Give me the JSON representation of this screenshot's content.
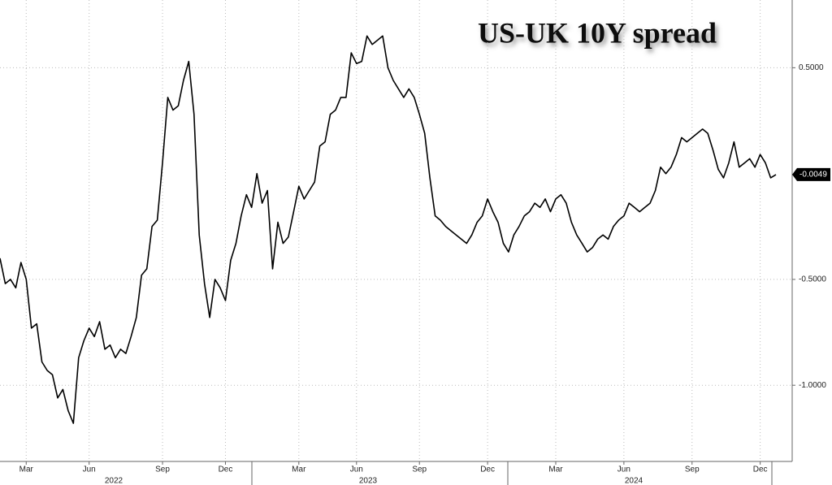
{
  "chart_data": {
    "type": "line",
    "title": "US-UK 10Y spread",
    "categories": [
      null,
      null,
      null,
      null,
      null,
      "Mar",
      null,
      null,
      null,
      null,
      null,
      null,
      null,
      null,
      null,
      null,
      null,
      "Jun",
      null,
      null,
      null,
      null,
      null,
      null,
      null,
      null,
      null,
      null,
      null,
      null,
      null,
      "Sep",
      null,
      null,
      null,
      null,
      null,
      null,
      null,
      null,
      null,
      null,
      null,
      "Dec",
      null,
      null,
      null,
      null,
      null,
      null,
      null,
      null,
      null,
      null,
      null,
      null,
      null,
      "Mar",
      null,
      null,
      null,
      null,
      null,
      null,
      null,
      null,
      null,
      null,
      "Jun",
      null,
      null,
      null,
      null,
      null,
      null,
      null,
      null,
      null,
      null,
      null,
      "Sep",
      null,
      null,
      null,
      null,
      null,
      null,
      null,
      null,
      null,
      null,
      null,
      null,
      "Dec",
      null,
      null,
      null,
      null,
      null,
      null,
      null,
      null,
      null,
      null,
      null,
      null,
      "Mar",
      null,
      null,
      null,
      null,
      null,
      null,
      null,
      null,
      null,
      null,
      null,
      null,
      "Jun",
      null,
      null,
      null,
      null,
      null,
      null,
      null,
      null,
      null,
      null,
      null,
      null,
      "Sep",
      null,
      null,
      null,
      null,
      null,
      null,
      null,
      null,
      null,
      null,
      null,
      null,
      "Dec",
      null,
      null,
      null
    ],
    "x_groups": [
      "2022",
      "2023",
      "2024"
    ],
    "series": [
      {
        "color": "#000000",
        "values": [
          -0.4,
          -0.52,
          -0.5,
          -0.54,
          -0.42,
          -0.5,
          -0.73,
          -0.71,
          -0.89,
          -0.93,
          -0.95,
          -1.06,
          -1.02,
          -1.12,
          -1.18,
          -0.87,
          -0.79,
          -0.73,
          -0.77,
          -0.7,
          -0.83,
          -0.81,
          -0.87,
          -0.83,
          -0.85,
          -0.77,
          -0.68,
          -0.48,
          -0.45,
          -0.25,
          -0.22,
          0.05,
          0.36,
          0.3,
          0.32,
          0.44,
          0.53,
          0.28,
          -0.29,
          -0.52,
          -0.68,
          -0.5,
          -0.54,
          -0.6,
          -0.41,
          -0.33,
          -0.2,
          -0.1,
          -0.16,
          0.0,
          -0.14,
          -0.08,
          -0.45,
          -0.23,
          -0.33,
          -0.3,
          -0.18,
          -0.06,
          -0.12,
          -0.08,
          -0.04,
          0.13,
          0.15,
          0.28,
          0.3,
          0.36,
          0.36,
          0.57,
          0.52,
          0.53,
          0.65,
          0.61,
          0.63,
          0.65,
          0.5,
          0.44,
          0.4,
          0.36,
          0.4,
          0.36,
          0.28,
          0.19,
          -0.02,
          -0.2,
          -0.22,
          -0.25,
          -0.27,
          -0.29,
          -0.31,
          -0.33,
          -0.29,
          -0.23,
          -0.2,
          -0.12,
          -0.18,
          -0.23,
          -0.33,
          -0.37,
          -0.29,
          -0.25,
          -0.2,
          -0.18,
          -0.14,
          -0.16,
          -0.12,
          -0.18,
          -0.12,
          -0.1,
          -0.14,
          -0.23,
          -0.29,
          -0.33,
          -0.37,
          -0.35,
          -0.31,
          -0.29,
          -0.31,
          -0.25,
          -0.22,
          -0.2,
          -0.14,
          -0.16,
          -0.18,
          -0.16,
          -0.14,
          -0.08,
          0.03,
          0.0,
          0.03,
          0.09,
          0.17,
          0.15,
          0.17,
          0.19,
          0.21,
          0.19,
          0.11,
          0.02,
          -0.02,
          0.05,
          0.15,
          0.03,
          0.05,
          0.07,
          0.03,
          0.09,
          0.05,
          -0.02,
          -0.0049
        ]
      }
    ],
    "ylim": [
      -1.36,
      0.82
    ],
    "yticks": [
      {
        "value": 0.5,
        "label": "0.5000"
      },
      {
        "value": -0.5,
        "label": "-0.5000"
      },
      {
        "value": -1,
        "label": "-1.0000"
      }
    ],
    "y_axis_side": "right",
    "grid": true
  }
}
